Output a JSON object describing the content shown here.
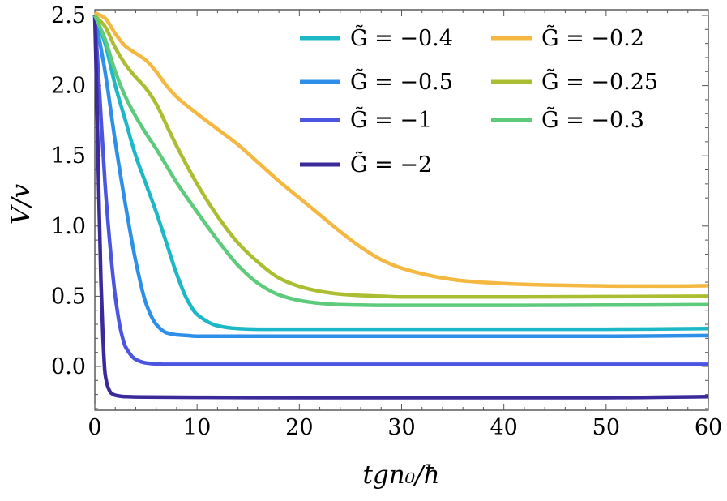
{
  "chart_data": {
    "type": "line",
    "title": "",
    "xlabel": "tgn₀/ħ",
    "ylabel": "V/v",
    "xlim": [
      0,
      60
    ],
    "ylim": [
      -0.3,
      2.55
    ],
    "x_ticks": [
      0,
      10,
      20,
      30,
      40,
      50,
      60
    ],
    "x_tick_labels": [
      "0",
      "10",
      "20",
      "30",
      "40",
      "50",
      "60"
    ],
    "y_ticks": [
      0.0,
      0.5,
      1.0,
      1.5,
      2.0,
      2.5
    ],
    "y_tick_labels": [
      "0.0",
      "0.5",
      "1.0",
      "1.5",
      "2.0",
      "2.5"
    ],
    "grid": false,
    "legend_position": "top-right",
    "series": [
      {
        "name": "G̃ = −0.4",
        "color": "#1db8c7",
        "x": [
          0,
          1,
          2,
          3,
          4,
          5,
          6,
          7,
          8,
          9,
          10,
          12,
          14,
          16,
          20,
          30,
          40,
          50,
          60
        ],
        "y": [
          2.5,
          2.3,
          2.0,
          1.75,
          1.5,
          1.3,
          1.1,
          0.88,
          0.66,
          0.48,
          0.37,
          0.29,
          0.27,
          0.265,
          0.265,
          0.265,
          0.265,
          0.265,
          0.27
        ]
      },
      {
        "name": "G̃ = −0.5",
        "color": "#2e8fe8",
        "x": [
          0,
          1,
          2,
          3,
          4,
          5,
          6,
          7,
          8,
          9,
          10,
          12,
          14,
          20,
          30,
          40,
          50,
          60
        ],
        "y": [
          2.5,
          2.1,
          1.6,
          1.15,
          0.75,
          0.45,
          0.3,
          0.24,
          0.225,
          0.22,
          0.215,
          0.215,
          0.215,
          0.215,
          0.215,
          0.215,
          0.215,
          0.22
        ]
      },
      {
        "name": "G̃ = −1",
        "color": "#4b55e2",
        "x": [
          0,
          0.5,
          1,
          1.5,
          2,
          2.5,
          3,
          4,
          5,
          6,
          7,
          10,
          20,
          30,
          40,
          50,
          60
        ],
        "y": [
          2.5,
          1.9,
          1.3,
          0.85,
          0.5,
          0.27,
          0.14,
          0.05,
          0.025,
          0.018,
          0.015,
          0.015,
          0.015,
          0.015,
          0.015,
          0.015,
          0.015
        ]
      },
      {
        "name": "G̃ = −2",
        "color": "#3a2a9a",
        "x": [
          0,
          0.2,
          0.4,
          0.6,
          0.8,
          1.0,
          1.3,
          1.6,
          2.0,
          3,
          5,
          10,
          20,
          30,
          40,
          50,
          60
        ],
        "y": [
          2.5,
          1.9,
          1.2,
          0.6,
          0.2,
          -0.05,
          -0.15,
          -0.19,
          -0.205,
          -0.215,
          -0.218,
          -0.22,
          -0.222,
          -0.222,
          -0.222,
          -0.222,
          -0.215
        ]
      },
      {
        "name": "G̃ = −0.2",
        "color": "#f4b740",
        "x": [
          0,
          1,
          2,
          3,
          4,
          5,
          6,
          7,
          8,
          10,
          12,
          14,
          16,
          18,
          20,
          22,
          24,
          26,
          28,
          30,
          32,
          34,
          36,
          40,
          44,
          48,
          52,
          56,
          60
        ],
        "y": [
          2.52,
          2.48,
          2.37,
          2.28,
          2.23,
          2.18,
          2.1,
          2.0,
          1.92,
          1.8,
          1.69,
          1.58,
          1.45,
          1.32,
          1.2,
          1.08,
          0.96,
          0.85,
          0.76,
          0.7,
          0.66,
          0.63,
          0.61,
          0.59,
          0.58,
          0.575,
          0.572,
          0.572,
          0.575
        ]
      },
      {
        "name": "G̃ = −0.25",
        "color": "#abbe32",
        "x": [
          0,
          1,
          2,
          3,
          4,
          5,
          6,
          7,
          8,
          10,
          12,
          14,
          16,
          18,
          20,
          22,
          24,
          26,
          28,
          30,
          32,
          36,
          40,
          50,
          60
        ],
        "y": [
          2.5,
          2.42,
          2.27,
          2.15,
          2.06,
          1.98,
          1.87,
          1.72,
          1.57,
          1.3,
          1.07,
          0.88,
          0.74,
          0.63,
          0.57,
          0.535,
          0.515,
          0.505,
          0.5,
          0.495,
          0.495,
          0.495,
          0.495,
          0.497,
          0.5
        ]
      },
      {
        "name": "G̃ = −0.3",
        "color": "#5ecb7c",
        "x": [
          0,
          1,
          2,
          3,
          4,
          5,
          6,
          7,
          8,
          10,
          12,
          14,
          16,
          18,
          20,
          22,
          24,
          26,
          28,
          30,
          40,
          50,
          60
        ],
        "y": [
          2.5,
          2.33,
          2.1,
          1.92,
          1.78,
          1.66,
          1.55,
          1.43,
          1.31,
          1.1,
          0.9,
          0.72,
          0.59,
          0.51,
          0.47,
          0.45,
          0.44,
          0.437,
          0.435,
          0.435,
          0.435,
          0.437,
          0.44
        ]
      }
    ],
    "legend_columns": [
      [
        "G̃ = −0.4",
        "G̃ = −0.5",
        "G̃ = −1",
        "G̃ = −2"
      ],
      [
        "G̃ = −0.2",
        "G̃ = −0.25",
        "G̃ = −0.3"
      ]
    ]
  }
}
